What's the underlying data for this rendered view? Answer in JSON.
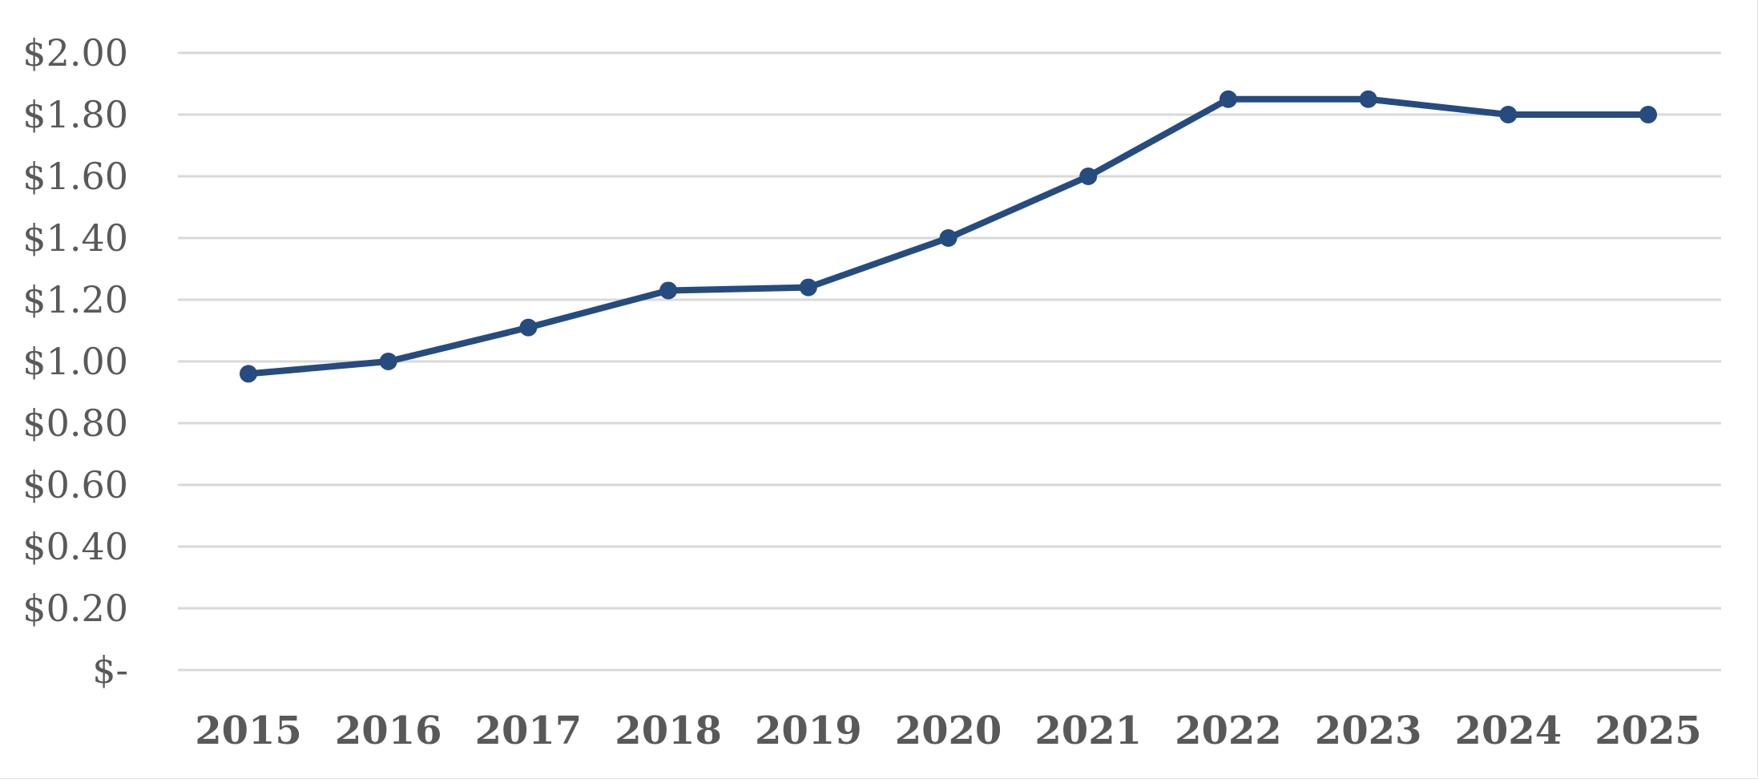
{
  "chart_data": {
    "type": "line",
    "title": "",
    "xlabel": "",
    "ylabel": "",
    "categories": [
      "2015",
      "2016",
      "2017",
      "2018",
      "2019",
      "2020",
      "2021",
      "2022",
      "2023",
      "2024",
      "2025"
    ],
    "series": [
      {
        "color": "#264b7f",
        "values": [
          0.96,
          1.0,
          1.11,
          1.23,
          1.24,
          1.4,
          1.6,
          1.85,
          1.85,
          1.8,
          1.8
        ]
      }
    ],
    "ylim": [
      0,
      2.0
    ],
    "ytick_values": [
      0,
      0.2,
      0.4,
      0.6,
      0.8,
      1.0,
      1.2,
      1.4,
      1.6,
      1.8,
      2.0
    ],
    "ytick_labels": [
      "$-",
      "$0.20",
      "$0.40",
      "$0.60",
      "$0.80",
      "$1.00",
      "$1.20",
      "$1.40",
      "$1.60",
      "$1.80",
      "$2.00"
    ],
    "grid": true,
    "legend": "none",
    "markers": "circle"
  }
}
